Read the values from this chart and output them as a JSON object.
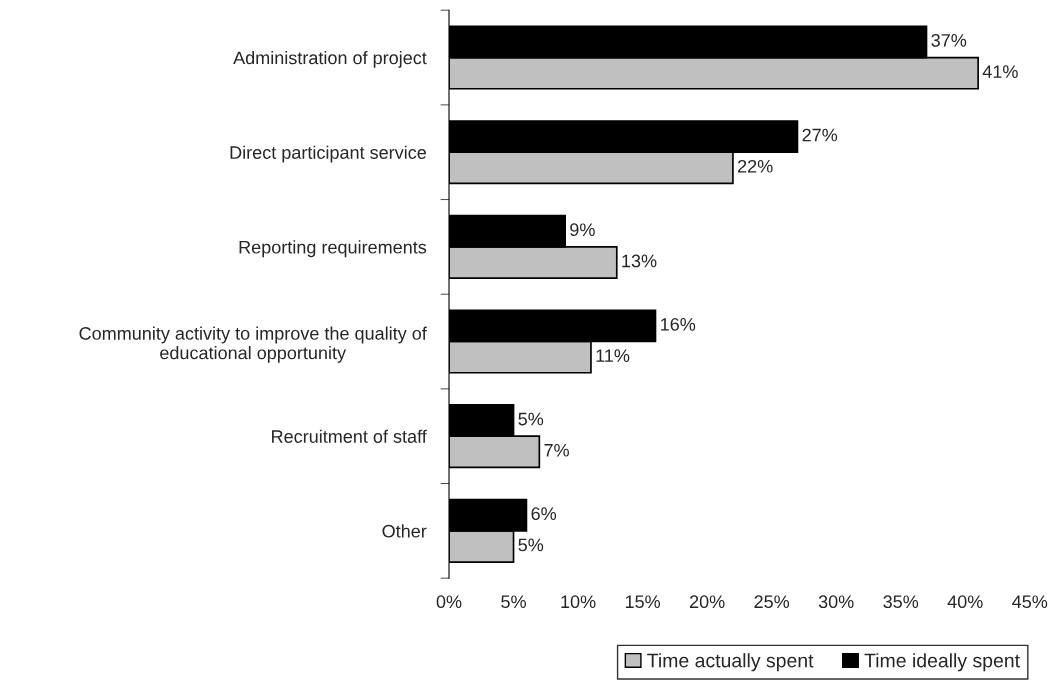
{
  "chart_data": {
    "type": "bar",
    "orientation": "horizontal",
    "categories": [
      "Administration of project",
      "Direct participant service",
      "Reporting requirements",
      "Community activity to improve the quality of\neducational opportunity",
      "Recruitment of staff",
      "Other"
    ],
    "series": [
      {
        "name": "Time actually spent",
        "color": "#c0c0c0",
        "values": [
          41,
          22,
          13,
          11,
          7,
          5
        ],
        "value_labels": [
          "41%",
          "22%",
          "13%",
          "11%",
          "7%",
          "5%"
        ]
      },
      {
        "name": "Time ideally spent",
        "color": "#000000",
        "values": [
          37,
          27,
          9,
          16,
          5,
          6
        ],
        "value_labels": [
          "37%",
          "27%",
          "9%",
          "16%",
          "5%",
          "6%"
        ]
      }
    ],
    "xlim": [
      0,
      45
    ],
    "xticks": [
      {
        "value": 0,
        "label": "0%"
      },
      {
        "value": 5,
        "label": "5%"
      },
      {
        "value": 10,
        "label": "10%"
      },
      {
        "value": 15,
        "label": "15%"
      },
      {
        "value": 20,
        "label": "20%"
      },
      {
        "value": 25,
        "label": "25%"
      },
      {
        "value": 30,
        "label": "30%"
      },
      {
        "value": 35,
        "label": "35%"
      },
      {
        "value": 40,
        "label": "40%"
      },
      {
        "value": 45,
        "label": "45%"
      }
    ],
    "grid": false,
    "legend": "bottom right"
  }
}
